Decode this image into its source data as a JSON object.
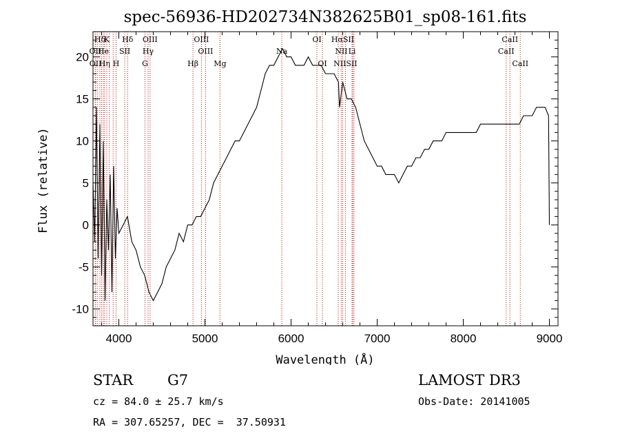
{
  "chart_data": {
    "type": "line",
    "title": "spec-56936-HD202734N382625B01_sp08-161.fits",
    "xlabel": "Wavelength (Å)",
    "ylabel": "Flux (relative)",
    "xlim": [
      3700,
      9100
    ],
    "ylim": [
      -12,
      23
    ],
    "xticks": [
      4000,
      5000,
      6000,
      7000,
      8000,
      9000
    ],
    "yticks": [
      -10,
      -5,
      0,
      5,
      10,
      15,
      20
    ],
    "grid": false,
    "series": [
      {
        "x": [
          3700,
          3720,
          3740,
          3760,
          3780,
          3800,
          3820,
          3840,
          3860,
          3880,
          3900,
          3920,
          3940,
          3960,
          3980,
          4000,
          4050,
          4100,
          4150,
          4200,
          4250,
          4300,
          4350,
          4400,
          4450,
          4500,
          4550,
          4600,
          4650,
          4700,
          4750,
          4800,
          4850,
          4900,
          4950,
          5000,
          5050,
          5100,
          5150,
          5200,
          5250,
          5300,
          5350,
          5400,
          5450,
          5500,
          5550,
          5600,
          5650,
          5700,
          5750,
          5800,
          5850,
          5900,
          5950,
          6000,
          6050,
          6100,
          6150,
          6200,
          6250,
          6300,
          6350,
          6400,
          6450,
          6500,
          6550,
          6563,
          6600,
          6650,
          6700,
          6750,
          6800,
          6850,
          6900,
          6950,
          7000,
          7050,
          7100,
          7150,
          7200,
          7250,
          7300,
          7350,
          7400,
          7450,
          7500,
          7550,
          7600,
          7650,
          7700,
          7750,
          7800,
          7850,
          7900,
          7950,
          8000,
          8050,
          8100,
          8150,
          8200,
          8250,
          8300,
          8350,
          8400,
          8450,
          8500,
          8550,
          8600,
          8650,
          8700,
          8750,
          8800,
          8850,
          8900,
          8950,
          8990,
          9000
        ],
        "y": [
          5,
          -2,
          14,
          -4,
          12,
          -6,
          10,
          -9,
          3,
          -3,
          6,
          -8,
          7,
          -4,
          2,
          -1,
          0,
          1,
          -2,
          -3,
          -5,
          -6,
          -8,
          -9,
          -8,
          -7,
          -5,
          -4,
          -3,
          -1,
          -2,
          0,
          0,
          1,
          1,
          2,
          3,
          5,
          6,
          7,
          8,
          9,
          10,
          10,
          11,
          12,
          13,
          14,
          16,
          18,
          19,
          19,
          20,
          21,
          20,
          20,
          19,
          19,
          19,
          20,
          19,
          19,
          19,
          18,
          18,
          18,
          17,
          14,
          17,
          15,
          15,
          14,
          12,
          10,
          9,
          8,
          7,
          7,
          6,
          6,
          6,
          5,
          6,
          7,
          7,
          8,
          8,
          9,
          9,
          10,
          10,
          10,
          11,
          11,
          11,
          11,
          11,
          11,
          11,
          11,
          12,
          12,
          12,
          12,
          12,
          12,
          12,
          12,
          12,
          12,
          13,
          13,
          13,
          14,
          14,
          14,
          13,
          0
        ]
      }
    ],
    "spectral_lines": [
      {
        "label": "Hδ",
        "x": 3780,
        "row": 1
      },
      {
        "label": "K",
        "x": 3860,
        "row": 1
      },
      {
        "label": "Hδ",
        "x": 4102,
        "row": 1
      },
      {
        "label": "OIII",
        "x": 4363,
        "row": 1
      },
      {
        "label": "OIII",
        "x": 4959,
        "row": 1
      },
      {
        "label": "OI",
        "x": 6300,
        "row": 1
      },
      {
        "label": "HαSII",
        "x": 6600,
        "row": 1
      },
      {
        "label": "CaII",
        "x": 8542,
        "row": 1
      },
      {
        "label": "OII",
        "x": 3727,
        "row": 2
      },
      {
        "label": "He",
        "x": 3820,
        "row": 2
      },
      {
        "label": "SII",
        "x": 4069,
        "row": 2
      },
      {
        "label": "Hγ",
        "x": 4340,
        "row": 2
      },
      {
        "label": "OIII",
        "x": 5007,
        "row": 2
      },
      {
        "label": "Na",
        "x": 5893,
        "row": 2
      },
      {
        "label": "NII",
        "x": 6583,
        "row": 2
      },
      {
        "label": "Li",
        "x": 6708,
        "row": 2
      },
      {
        "label": "CaII",
        "x": 8498,
        "row": 2
      },
      {
        "label": "OII",
        "x": 3729,
        "row": 3
      },
      {
        "label": "Hη",
        "x": 3835,
        "row": 3
      },
      {
        "label": "H",
        "x": 3968,
        "row": 3
      },
      {
        "label": "G",
        "x": 4304,
        "row": 3
      },
      {
        "label": "Hβ",
        "x": 4861,
        "row": 3
      },
      {
        "label": "Mg",
        "x": 5175,
        "row": 3
      },
      {
        "label": "OI",
        "x": 6364,
        "row": 3
      },
      {
        "label": "NIISII",
        "x": 6631,
        "row": 3
      },
      {
        "label": "CaII",
        "x": 8662,
        "row": 3
      }
    ],
    "extra_line_marks": [
      3750,
      3800,
      3889,
      3934,
      6548,
      6717,
      6731
    ]
  },
  "info": {
    "class": "STAR",
    "subclass": "G7",
    "survey": "LAMOST DR3",
    "cz": "cz = 84.0 ± 25.7 km/s",
    "obs_date": "Obs-Date: 20141005",
    "coords": "RA = 307.65257, DEC =  37.50931"
  }
}
